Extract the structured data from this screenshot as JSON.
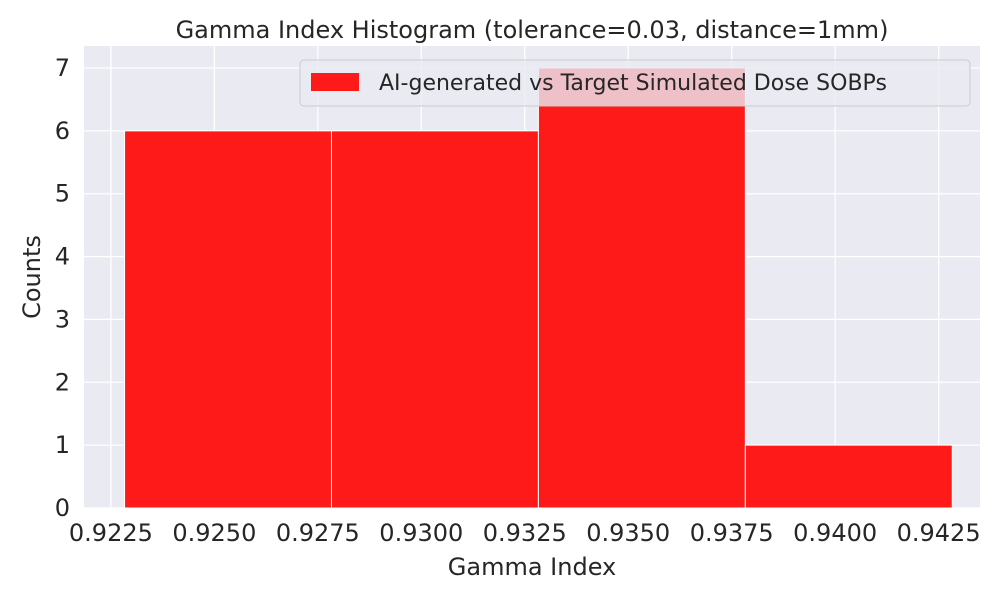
{
  "chart_data": {
    "type": "bar",
    "title": "Gamma Index Histogram (tolerance=0.03, distance=1mm)",
    "xlabel": "Gamma Index",
    "ylabel": "Counts",
    "xlim": [
      0.92185,
      0.9435
    ],
    "ylim": [
      0,
      7.35
    ],
    "xticks": [
      0.9225,
      0.925,
      0.9275,
      0.93,
      0.9325,
      0.935,
      0.9375,
      0.94,
      0.9425
    ],
    "xtick_labels": [
      "0.9225",
      "0.9250",
      "0.9275",
      "0.9300",
      "0.9325",
      "0.9350",
      "0.9375",
      "0.9400",
      "0.9425"
    ],
    "yticks": [
      0,
      1,
      2,
      3,
      4,
      5,
      6,
      7
    ],
    "ytick_labels": [
      "0",
      "1",
      "2",
      "3",
      "4",
      "5",
      "6",
      "7"
    ],
    "bin_edges": [
      0.92283,
      0.92783,
      0.93283,
      0.93783,
      0.94283
    ],
    "values": [
      6,
      6,
      7,
      1
    ],
    "bar_color": "#ff1a1a",
    "grid": true,
    "background_color": "#eaeaf2",
    "legend": {
      "position": "top-right",
      "entries": [
        {
          "label": "AI-generated vs Target Simulated Dose SOBPs",
          "color": "#ff1a1a"
        }
      ]
    }
  }
}
